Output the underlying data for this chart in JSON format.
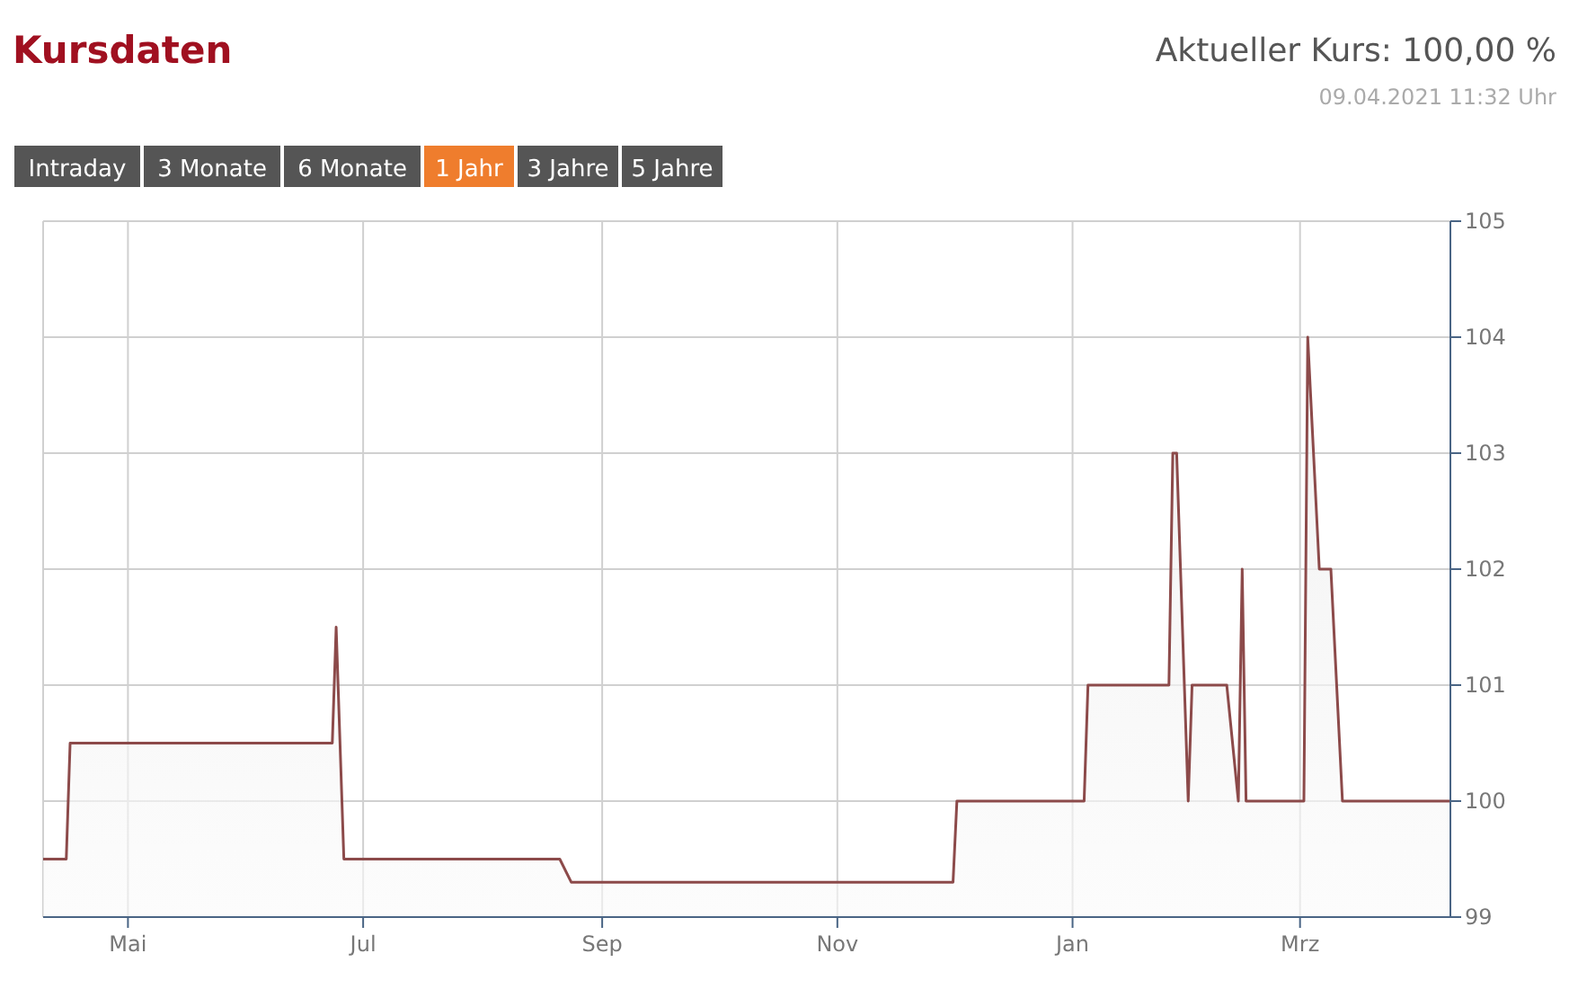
{
  "chart_data": {
    "type": "area",
    "title": "Kursdaten",
    "annotations": [
      "Aktueller Kurs: 100,00 %",
      "09.04.2021 11:32 Uhr",
      "Intraday",
      "3 Monate",
      "6 Monate",
      "1 Jahr",
      "3 Jahre",
      "5 Jahre"
    ],
    "x": [
      "2020-04-09",
      "2020-04-15",
      "2020-04-16",
      "2020-06-23",
      "2020-06-24",
      "2020-06-26",
      "2020-08-21",
      "2020-08-24",
      "2020-12-01",
      "2020-12-02",
      "2021-01-04",
      "2021-01-05",
      "2021-01-26",
      "2021-01-27",
      "2021-01-28",
      "2021-01-31",
      "2021-02-01",
      "2021-02-10",
      "2021-02-13",
      "2021-02-14",
      "2021-02-15",
      "2021-03-02",
      "2021-03-03",
      "2021-03-06",
      "2021-03-09",
      "2021-03-12",
      "2021-04-09"
    ],
    "series": [
      {
        "color": "#8c4a4a",
        "values": [
          99.5,
          99.5,
          100.5,
          100.5,
          101.5,
          99.5,
          99.5,
          99.3,
          99.3,
          100,
          100,
          101,
          101,
          103,
          103,
          100,
          101,
          101,
          100,
          102,
          100,
          100,
          104,
          102,
          102,
          100,
          100
        ]
      }
    ],
    "xlim": [
      "2020-04-09",
      "2021-04-09"
    ],
    "xticks": [
      {
        "value": "2020-05-01",
        "label": "Mai"
      },
      {
        "value": "2020-07-01",
        "label": "Jul"
      },
      {
        "value": "2020-09-01",
        "label": "Sep"
      },
      {
        "value": "2020-11-01",
        "label": "Nov"
      },
      {
        "value": "2021-01-01",
        "label": "Jan"
      },
      {
        "value": "2021-03-01",
        "label": "Mrz"
      }
    ],
    "ylim": [
      99,
      105
    ],
    "yticks": [
      99,
      100,
      101,
      102,
      103,
      104,
      105
    ],
    "grid": true
  }
}
